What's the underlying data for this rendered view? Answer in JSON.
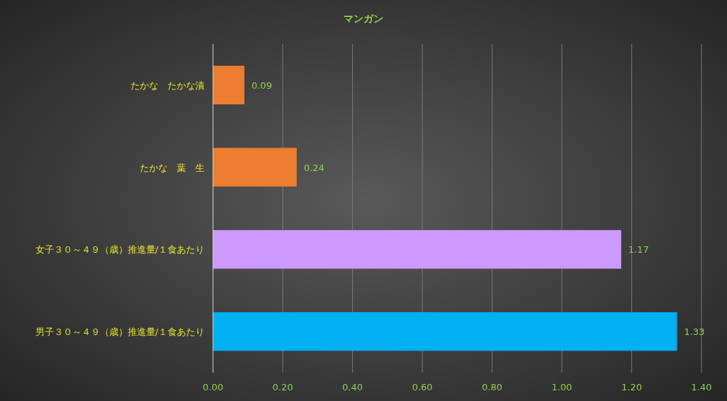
{
  "chart_data": {
    "type": "bar",
    "orientation": "horizontal",
    "title": "マンガン",
    "categories": [
      "たかな　たかな漬",
      "たかな　葉　生",
      "女子３０～４９（歳）推進量/１食あたり",
      "男子３０～４９（歳）推進量/１食あたり"
    ],
    "values": [
      0.09,
      0.24,
      1.17,
      1.33
    ],
    "colors": [
      "#ed7d31",
      "#ed7d31",
      "#cc99ff",
      "#00b0f0"
    ],
    "xlim": [
      0,
      1.4
    ],
    "xticks": [
      {
        "value": 0,
        "label": "0.00"
      },
      {
        "value": 0.2,
        "label": "0.20"
      },
      {
        "value": 0.4,
        "label": "0.40"
      },
      {
        "value": 0.6,
        "label": "0.60"
      },
      {
        "value": 0.8,
        "label": "0.80"
      },
      {
        "value": 1.0,
        "label": "1.00"
      },
      {
        "value": 1.2,
        "label": "1.20"
      },
      {
        "value": 1.4,
        "label": "1.40"
      }
    ],
    "grid": "x",
    "data_labels": true
  }
}
